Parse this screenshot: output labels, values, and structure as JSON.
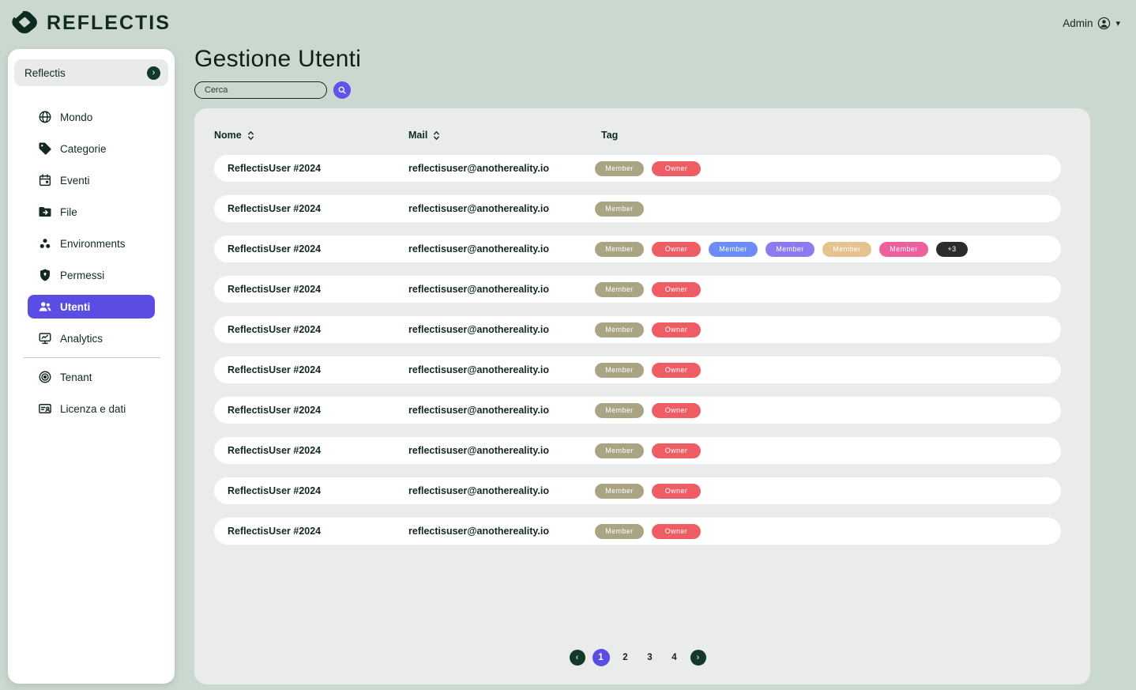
{
  "header": {
    "brand": "REFLECTIS",
    "admin_label": "Admin"
  },
  "sidebar": {
    "workspace": {
      "label": "Reflectis"
    },
    "items": [
      {
        "label": "Mondo",
        "icon": "globe",
        "active": false
      },
      {
        "label": "Categorie",
        "icon": "tag",
        "active": false
      },
      {
        "label": "Eventi",
        "icon": "calendar",
        "active": false
      },
      {
        "label": "File",
        "icon": "folder-arrow",
        "active": false
      },
      {
        "label": "Environments",
        "icon": "cluster",
        "active": false
      },
      {
        "label": "Permessi",
        "icon": "shield",
        "active": false
      },
      {
        "label": "Utenti",
        "icon": "users",
        "active": true
      },
      {
        "label": "Analytics",
        "icon": "monitor-chart",
        "active": false
      }
    ],
    "footer_items": [
      {
        "label": "Tenant",
        "icon": "target",
        "active": false
      },
      {
        "label": "Licenza e dati",
        "icon": "id-card",
        "active": false
      }
    ]
  },
  "main": {
    "title": "Gestione Utenti",
    "search": {
      "placeholder": "Cerca"
    },
    "table": {
      "columns": [
        {
          "label": "Nome",
          "sortable": true
        },
        {
          "label": "Mail",
          "sortable": true
        },
        {
          "label": "Tag",
          "sortable": false
        }
      ],
      "rows": [
        {
          "name": "ReflectisUser #2024",
          "mail": "reflectisuser@anothereality.io",
          "tags": [
            {
              "label": "Member",
              "color": "#a9a483"
            },
            {
              "label": "Owner",
              "color": "#ef5d64"
            }
          ]
        },
        {
          "name": "ReflectisUser #2024",
          "mail": "reflectisuser@anothereality.io",
          "tags": [
            {
              "label": "Member",
              "color": "#a9a483"
            }
          ]
        },
        {
          "name": "ReflectisUser #2024",
          "mail": "reflectisuser@anothereality.io",
          "tags": [
            {
              "label": "Member",
              "color": "#a9a483"
            },
            {
              "label": "Owner",
              "color": "#ef5d64"
            },
            {
              "label": "Member",
              "color": "#6c8cf8"
            },
            {
              "label": "Member",
              "color": "#8c7bf0"
            },
            {
              "label": "Member",
              "color": "#e6c28e"
            },
            {
              "label": "Member",
              "color": "#ee5f9f"
            },
            {
              "label": "+3",
              "color": "#2c2c2e"
            }
          ]
        },
        {
          "name": "ReflectisUser #2024",
          "mail": "reflectisuser@anothereality.io",
          "tags": [
            {
              "label": "Member",
              "color": "#a9a483"
            },
            {
              "label": "Owner",
              "color": "#ef5d64"
            }
          ]
        },
        {
          "name": "ReflectisUser #2024",
          "mail": "reflectisuser@anothereality.io",
          "tags": [
            {
              "label": "Member",
              "color": "#a9a483"
            },
            {
              "label": "Owner",
              "color": "#ef5d64"
            }
          ]
        },
        {
          "name": "ReflectisUser #2024",
          "mail": "reflectisuser@anothereality.io",
          "tags": [
            {
              "label": "Member",
              "color": "#a9a483"
            },
            {
              "label": "Owner",
              "color": "#ef5d64"
            }
          ]
        },
        {
          "name": "ReflectisUser #2024",
          "mail": "reflectisuser@anothereality.io",
          "tags": [
            {
              "label": "Member",
              "color": "#a9a483"
            },
            {
              "label": "Owner",
              "color": "#ef5d64"
            }
          ]
        },
        {
          "name": "ReflectisUser #2024",
          "mail": "reflectisuser@anothereality.io",
          "tags": [
            {
              "label": "Member",
              "color": "#a9a483"
            },
            {
              "label": "Owner",
              "color": "#ef5d64"
            }
          ]
        },
        {
          "name": "ReflectisUser #2024",
          "mail": "reflectisuser@anothereality.io",
          "tags": [
            {
              "label": "Member",
              "color": "#a9a483"
            },
            {
              "label": "Owner",
              "color": "#ef5d64"
            }
          ]
        },
        {
          "name": "ReflectisUser #2024",
          "mail": "reflectisuser@anothereality.io",
          "tags": [
            {
              "label": "Member",
              "color": "#a9a483"
            },
            {
              "label": "Owner",
              "color": "#ef5d64"
            }
          ]
        }
      ]
    },
    "pagination": {
      "pages": [
        "1",
        "2",
        "3",
        "4"
      ],
      "active": "1",
      "prev": "‹",
      "next": "›"
    }
  },
  "colors": {
    "page_bg": "#cbd8cf",
    "brand_dark_green": "#0e2b20",
    "accent_purple": "#5b4ce4",
    "card_bg": "#e9ecea",
    "row_bg": "#ffffff"
  }
}
